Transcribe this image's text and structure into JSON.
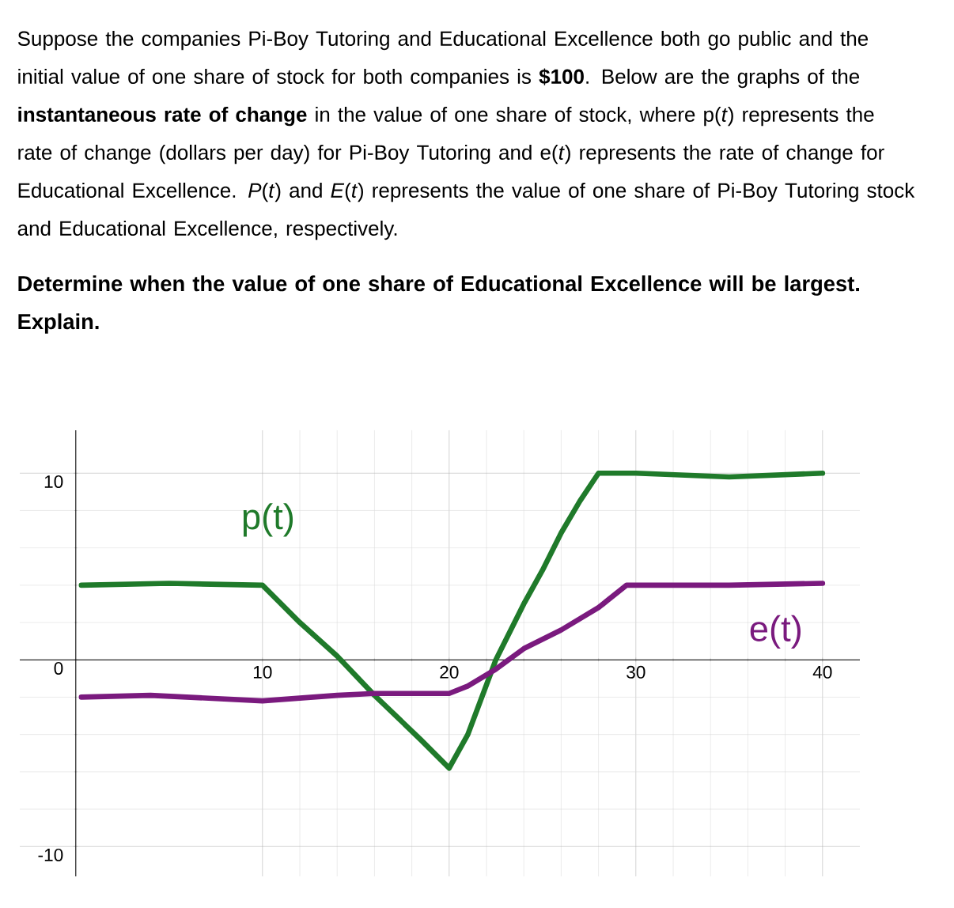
{
  "chart_data": {
    "type": "line",
    "title": "Suppose the companies Pi-Boy Tutoring and Educational Excellence both go public and the initial value of one share of stock for both companies is **$100**. Below are the graphs of the **instantaneous rate of change** in the value of one share of stock, where p(*t*) represents the rate of change (dollars per day) for Pi-Boy Tutoring and e(*t*) represents the rate of change for Educational Excellence. *P*(*t*) and *E*(*t*) represents the value of one share of Pi-Boy Tutoring stock and Educational Excellence, respectively.",
    "subtitle": "Determine when the value of one share of Educational Excellence will be largest. Explain.",
    "xlim": [
      -3,
      42
    ],
    "ylim": [
      -11.6,
      12.3
    ],
    "xticks": [
      10,
      20,
      30,
      40
    ],
    "yticks": [
      -10,
      0,
      10
    ],
    "grid": true,
    "series": [
      {
        "name": "p(t)",
        "color": "#1f7a2a",
        "x": [
          0.3,
          5,
          10,
          12,
          14,
          16,
          18.5,
          20,
          21,
          22.5,
          24,
          25,
          26,
          27,
          28,
          30,
          35,
          40
        ],
        "values": [
          4,
          4.1,
          4,
          2,
          0.2,
          -1.9,
          -4.3,
          -5.8,
          -4,
          0,
          3,
          4.8,
          6.8,
          8.5,
          10,
          10,
          9.8,
          10
        ]
      },
      {
        "name": "e(t)",
        "color": "#7a1a7e",
        "x": [
          0.3,
          4,
          10,
          14,
          16,
          20,
          21,
          22.5,
          24,
          26,
          28,
          29.5,
          35,
          40
        ],
        "values": [
          -2,
          -1.9,
          -2.2,
          -1.9,
          -1.8,
          -1.8,
          -1.4,
          -0.5,
          0.6,
          1.6,
          2.8,
          4,
          4,
          4.1
        ]
      }
    ]
  }
}
